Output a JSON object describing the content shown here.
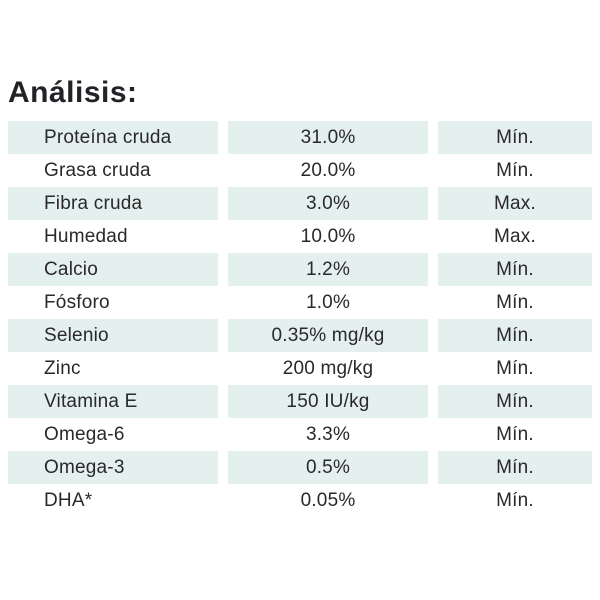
{
  "title": "Análisis:",
  "colors": {
    "row_highlight": "#e4f0ed",
    "text": "#29292c",
    "background": "#ffffff"
  },
  "table": {
    "rows": [
      {
        "label": "Proteína cruda",
        "value": "31.0%",
        "limit": "Mín."
      },
      {
        "label": "Grasa cruda",
        "value": "20.0%",
        "limit": "Mín."
      },
      {
        "label": "Fibra cruda",
        "value": "3.0%",
        "limit": "Max."
      },
      {
        "label": "Humedad",
        "value": "10.0%",
        "limit": "Max."
      },
      {
        "label": "Calcio",
        "value": "1.2%",
        "limit": "Mín."
      },
      {
        "label": "Fósforo",
        "value": "1.0%",
        "limit": "Mín."
      },
      {
        "label": "Selenio",
        "value": "0.35% mg/kg",
        "limit": "Mín."
      },
      {
        "label": "Zinc",
        "value": "200 mg/kg",
        "limit": "Mín."
      },
      {
        "label": "Vitamina E",
        "value": "150 IU/kg",
        "limit": "Mín."
      },
      {
        "label": "Omega-6",
        "value": "3.3%",
        "limit": "Mín."
      },
      {
        "label": "Omega-3",
        "value": "0.5%",
        "limit": "Mín."
      },
      {
        "label": "DHA*",
        "value": "0.05%",
        "limit": "Mín."
      }
    ]
  }
}
